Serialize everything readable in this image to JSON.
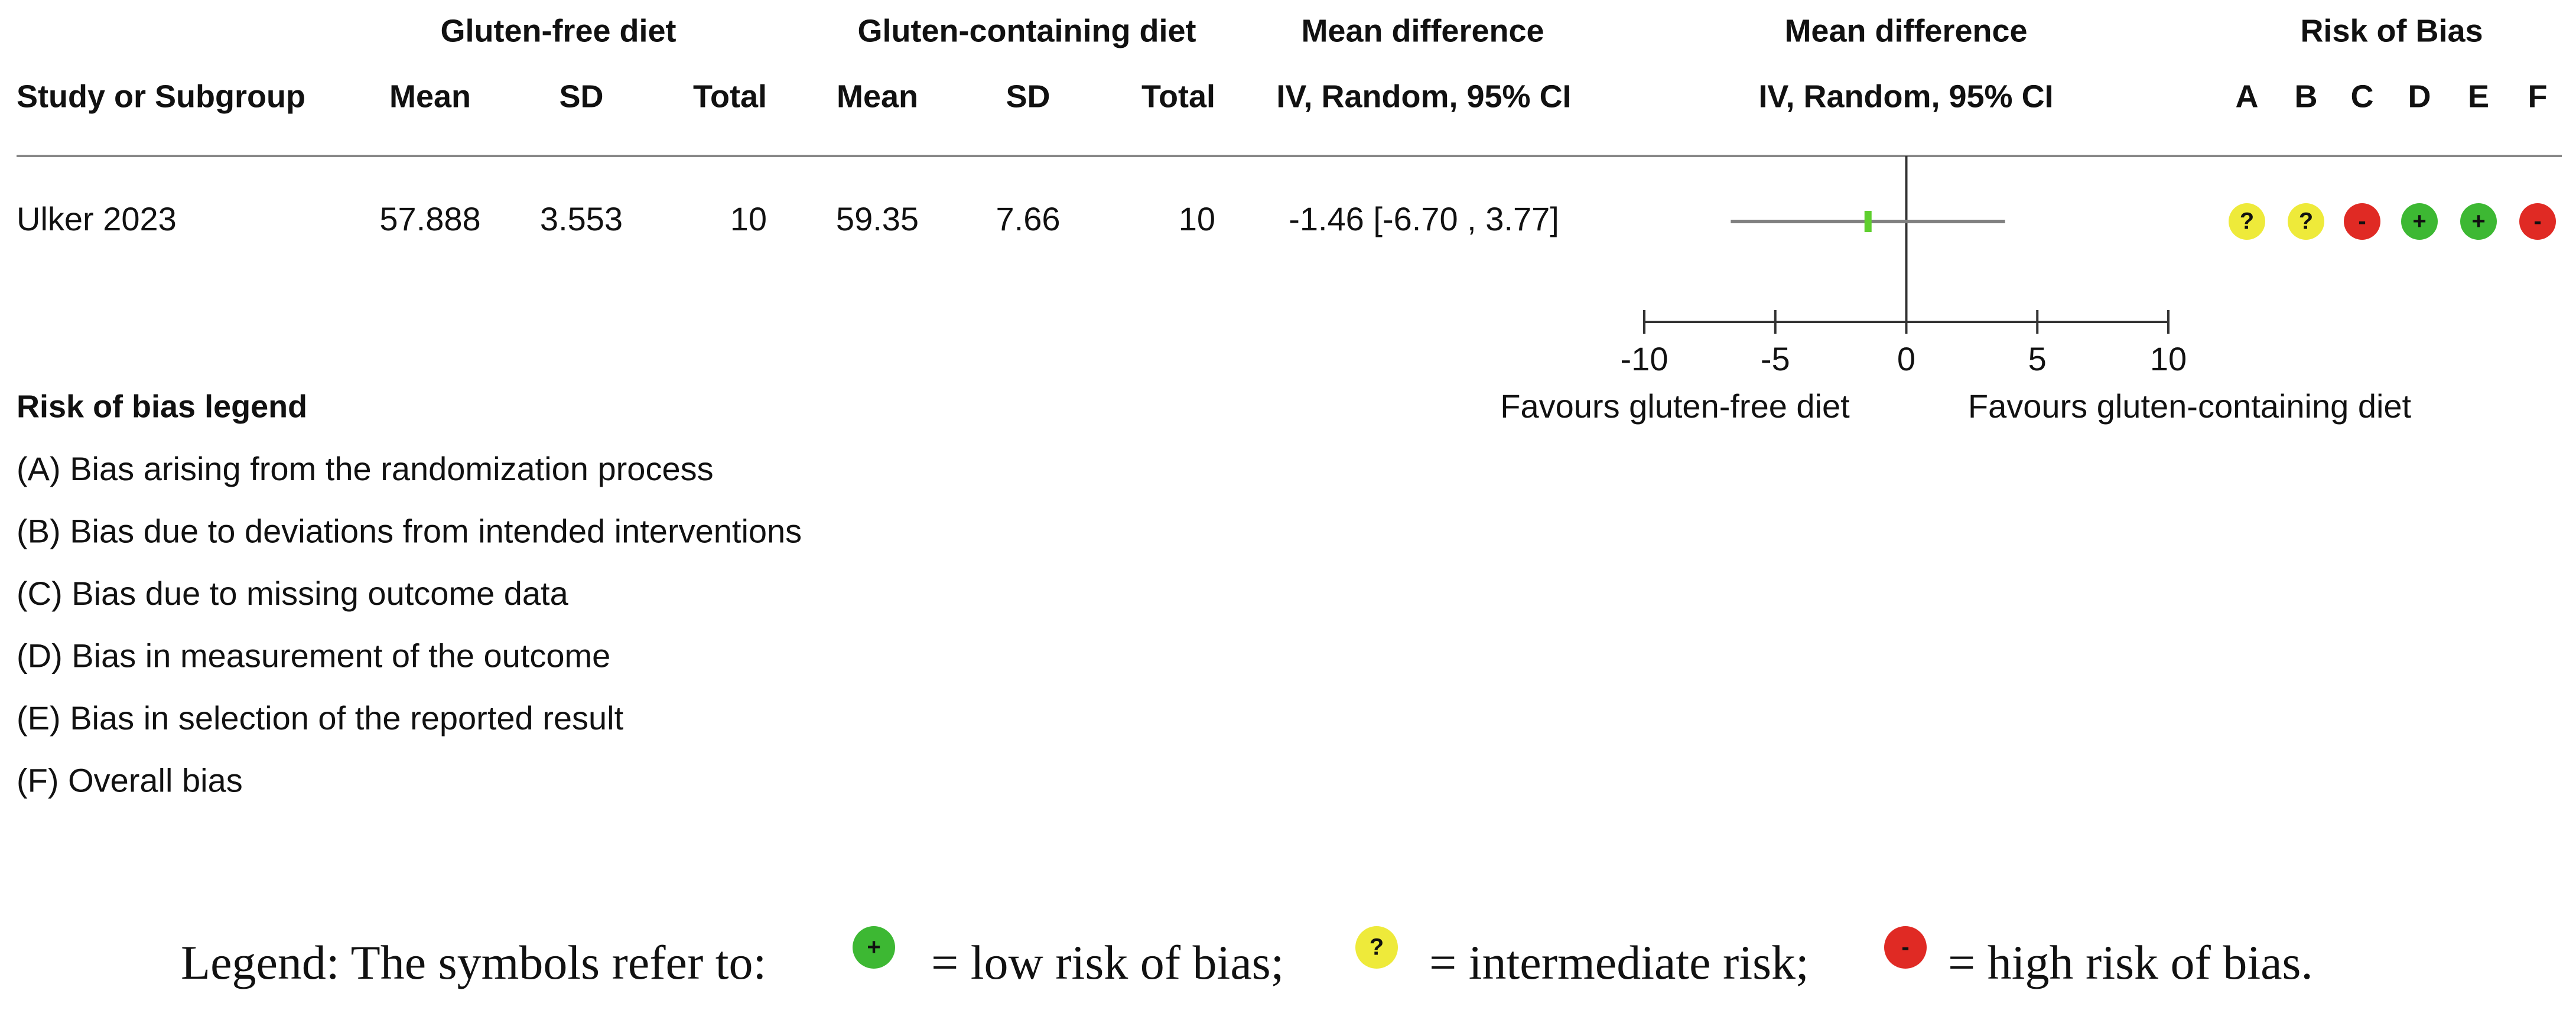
{
  "chart_data": {
    "type": "forest",
    "group_headers": [
      "Gluten-free diet",
      "Gluten-containing diet",
      "Mean difference",
      "Mean difference",
      "Risk of Bias"
    ],
    "columns": [
      "Study or Subgroup",
      "Mean",
      "SD",
      "Total",
      "Mean",
      "SD",
      "Total",
      "IV, Random, 95% CI",
      "IV, Random, 95% CI"
    ],
    "bias_domains": [
      "A",
      "B",
      "C",
      "D",
      "E",
      "F"
    ],
    "studies": [
      {
        "name": "Ulker 2023",
        "cells": [
          57.888,
          3.553,
          10,
          59.35,
          7.66,
          10
        ],
        "estimate": -1.46,
        "ci": [
          -6.7,
          3.77
        ],
        "ci_label": "-1.46 [-6.70 , 3.77]",
        "bias": [
          "?",
          "?",
          "-",
          "+",
          "+",
          "-"
        ]
      }
    ],
    "xlim": [
      -10,
      10
    ],
    "xticks": [
      -10,
      -5,
      0,
      5,
      10
    ],
    "xlabel_left": "Favours gluten-free diet",
    "xlabel_right": "Favours gluten-containing diet",
    "marker_color": "#5fcf2f",
    "line_color": "#808080",
    "bias_colors": {
      "+": "#3db833",
      "?": "#eeea3a",
      "-": "#e02a24"
    }
  },
  "risk_legend": {
    "title": "Risk of bias legend",
    "items": [
      "(A) Bias arising from the randomization process",
      "(B) Bias due to deviations from intended interventions",
      "(C) Bias due to missing outcome data",
      "(D) Bias in measurement of the outcome",
      "(E) Bias in selection of the reported result",
      "(F) Overall bias"
    ]
  },
  "footer": {
    "parts": [
      "Legend: The symbols refer to:",
      "= low risk of bias;",
      "= intermediate risk;",
      "= high risk of bias."
    ],
    "icons": [
      "+",
      "?",
      "-"
    ]
  }
}
